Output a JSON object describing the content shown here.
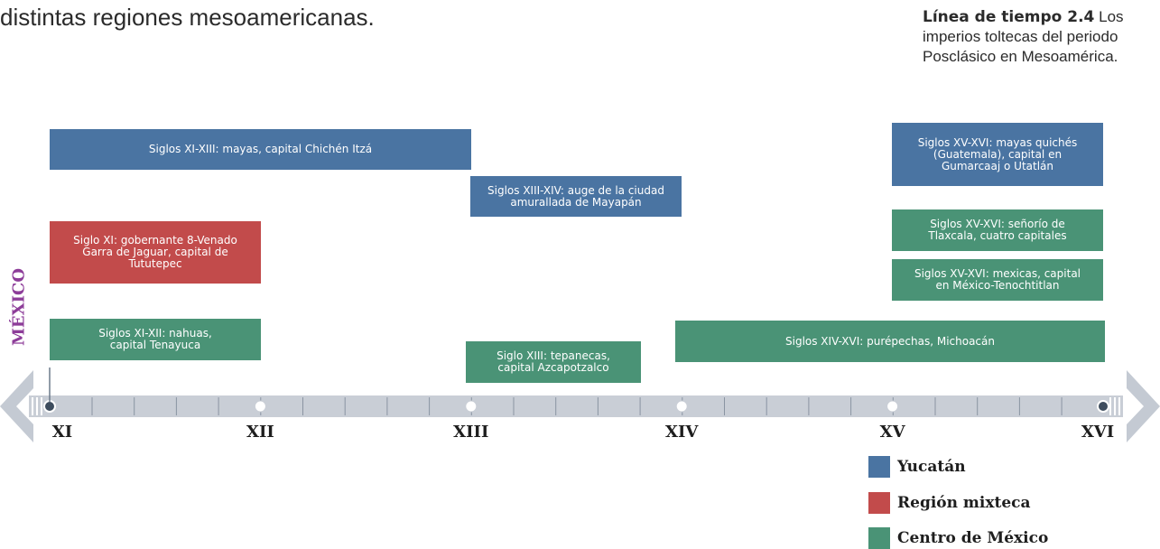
{
  "intro_text": "distintas regiones mesoamericanas.",
  "caption": {
    "label": "Línea de tiempo 2.4",
    "text": " Los imperios toltecas del periodo Posclásico en Mesoamérica."
  },
  "side_label": "MÉXICO",
  "colors": {
    "yucatan": "#4a74a2",
    "mixteca": "#c24b4b",
    "centro": "#4a9376",
    "mexico": "#8d3d99"
  },
  "axis": {
    "ticks": [
      "XI",
      "XII",
      "XIII",
      "XIV",
      "XV",
      "XVI"
    ]
  },
  "events": [
    {
      "text": "Siglos XI-XIII: mayas, capital Chichén Itzá",
      "region": "yucatan",
      "from": "XI",
      "to": "XIII"
    },
    {
      "text": "Siglos XIII-XIV: auge de la ciudad\namurallada de Mayapán",
      "region": "yucatan",
      "from": "XIII",
      "to": "XIV"
    },
    {
      "text": "Siglos XV-XVI: mayas quichés\n(Guatemala), capital en\nGumarcaaj o Utatlán",
      "region": "yucatan",
      "from": "XV",
      "to": "XVI"
    },
    {
      "text": "Siglo XI: gobernante 8-Venado\nGarra de Jaguar, capital de\nTututepec",
      "region": "mixteca",
      "from": "XI",
      "to": "XII"
    },
    {
      "text": "Siglos XV-XVI: señorío de\nTlaxcala, cuatro capitales",
      "region": "centro",
      "from": "XV",
      "to": "XVI"
    },
    {
      "text": "Siglos XV-XVI: mexicas, capital\nen México-Tenochtitlan",
      "region": "centro",
      "from": "XV",
      "to": "XVI"
    },
    {
      "text": "Siglos XI-XII: nahuas,\ncapital Tenayuca",
      "region": "centro",
      "from": "XI",
      "to": "XII"
    },
    {
      "text": "Siglo XIII: tepanecas,\ncapital Azcapotzalco",
      "region": "centro",
      "from": "XIII",
      "to": "XIV"
    },
    {
      "text": "Siglos XIV-XVI: purépechas, Michoacán",
      "region": "centro",
      "from": "XIV",
      "to": "XVI"
    }
  ],
  "legend": [
    {
      "label": "Yucatán",
      "region": "yucatan"
    },
    {
      "label": "Región mixteca",
      "region": "mixteca"
    },
    {
      "label": "Centro de México",
      "region": "centro"
    }
  ]
}
